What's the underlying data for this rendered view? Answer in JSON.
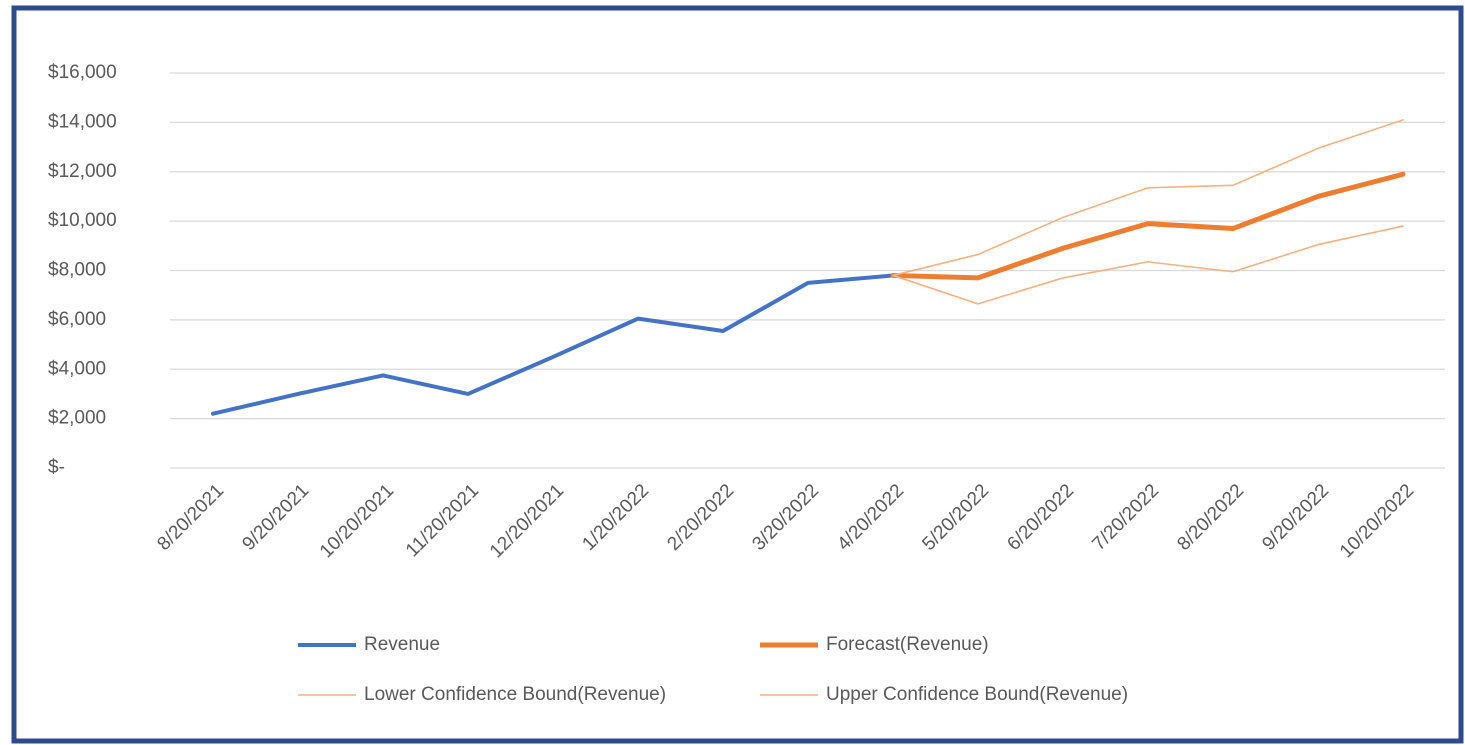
{
  "chart_data": {
    "type": "line",
    "categories": [
      "8/20/2021",
      "9/20/2021",
      "10/20/2021",
      "11/20/2021",
      "12/20/2021",
      "1/20/2022",
      "2/20/2022",
      "3/20/2022",
      "4/20/2022",
      "5/20/2022",
      "6/20/2022",
      "7/20/2022",
      "8/20/2022",
      "9/20/2022",
      "10/20/2022"
    ],
    "series": [
      {
        "name": "Revenue",
        "color": "#4472c4",
        "values": [
          2200,
          3000,
          3750,
          3000,
          4500,
          6050,
          5550,
          7500,
          7800,
          null,
          null,
          null,
          null,
          null,
          null
        ]
      },
      {
        "name": "Forecast(Revenue)",
        "color": "#ed7d31",
        "values": [
          null,
          null,
          null,
          null,
          null,
          null,
          null,
          null,
          7800,
          7700,
          8900,
          9900,
          9700,
          11000,
          11900
        ]
      },
      {
        "name": "Lower Confidence Bound(Revenue)",
        "color": "#f4b183",
        "values": [
          null,
          null,
          null,
          null,
          null,
          null,
          null,
          null,
          7800,
          6650,
          7700,
          8350,
          7950,
          9050,
          9800
        ]
      },
      {
        "name": "Upper Confidence Bound(Revenue)",
        "color": "#f4b183",
        "values": [
          null,
          null,
          null,
          null,
          null,
          null,
          null,
          null,
          7800,
          8650,
          10150,
          11350,
          11450,
          12950,
          14100
        ]
      }
    ],
    "ylim": [
      0,
      16000
    ],
    "yticks": [
      {
        "value": 0,
        "label": "$-"
      },
      {
        "value": 2000,
        "label": "$2,000"
      },
      {
        "value": 4000,
        "label": "$4,000"
      },
      {
        "value": 6000,
        "label": "$6,000"
      },
      {
        "value": 8000,
        "label": "$8,000"
      },
      {
        "value": 10000,
        "label": "$10,000"
      },
      {
        "value": 12000,
        "label": "$12,000"
      },
      {
        "value": 14000,
        "label": "$14,000"
      },
      {
        "value": 16000,
        "label": "$16,000"
      }
    ],
    "grid": true
  }
}
